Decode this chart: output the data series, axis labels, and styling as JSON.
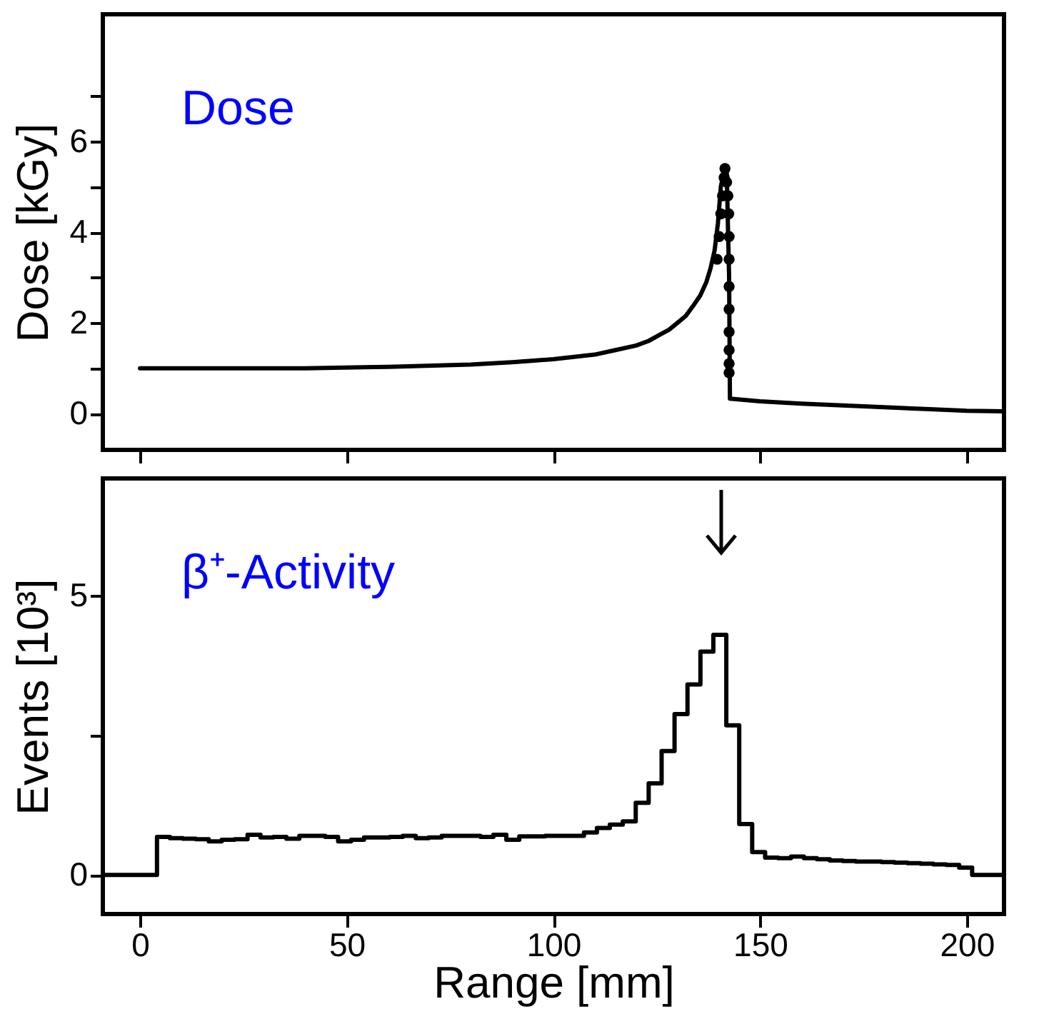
{
  "chart_data": [
    {
      "type": "line",
      "ylabel": "Dose [kGy]",
      "annotations": [
        "Dose"
      ],
      "xlim": [
        -9,
        209
      ],
      "xticks": [
        0,
        50,
        100,
        150,
        200
      ],
      "ylim": [
        -0.8,
        8.8
      ],
      "yticks": [
        0,
        {
          "value": 1,
          "label": null
        },
        2,
        {
          "value": 3,
          "label": null
        },
        4,
        {
          "value": 5,
          "label": null
        },
        6,
        {
          "value": 7,
          "label": null
        }
      ],
      "tick_labels": "y",
      "grid": false,
      "series": [
        {
          "type": "line",
          "color": "#000000",
          "x": [
            0,
            20,
            40,
            60,
            80,
            90,
            100,
            105,
            110,
            115,
            120,
            123,
            126,
            128,
            130,
            132,
            134,
            135.5,
            137,
            138,
            139,
            139.8,
            140.5,
            141.4,
            141.9,
            142.5,
            142.7,
            150,
            160,
            170,
            180,
            190,
            200,
            209
          ],
          "values": [
            1.0,
            1.0,
            1.0,
            1.03,
            1.08,
            1.13,
            1.2,
            1.25,
            1.3,
            1.4,
            1.5,
            1.6,
            1.75,
            1.85,
            2.0,
            2.15,
            2.4,
            2.6,
            2.9,
            3.2,
            3.6,
            4.2,
            5.0,
            5.4,
            5.4,
            3.0,
            0.33,
            0.27,
            0.22,
            0.18,
            0.14,
            0.1,
            0.06,
            0.05
          ]
        },
        {
          "type": "scatter",
          "color": "#000000",
          "marker": "circle",
          "x": [
            139.6,
            140.1,
            140.5,
            140.9,
            141.3,
            141.5,
            141.9,
            142.2,
            142.4,
            142.5,
            142.5,
            142.5,
            142.5,
            142.5,
            142.5,
            142.5,
            142.5
          ],
          "values": [
            3.4,
            3.9,
            4.4,
            4.8,
            5.2,
            5.4,
            5.1,
            4.8,
            4.4,
            3.9,
            3.4,
            2.8,
            2.3,
            1.8,
            1.4,
            1.1,
            0.9
          ]
        }
      ]
    },
    {
      "type": "histogram",
      "xlabel": "Range [mm]",
      "ylabel": "Events  [10³]",
      "annotations": [
        "β⁺-Activity"
      ],
      "xlim": [
        -9,
        209
      ],
      "xticks": [
        0,
        50,
        100,
        150,
        200
      ],
      "ylim": [
        -0.7,
        7.1
      ],
      "yticks": [
        0,
        {
          "value": 2.5,
          "label": null
        },
        5
      ],
      "grid": false,
      "color": "#000000",
      "bins": [
        -9,
        4.1,
        7.23,
        10.36,
        13.49,
        16.62,
        19.75,
        22.88,
        26.01,
        29.14,
        32.27,
        35.4,
        38.53,
        41.66,
        44.79,
        47.92,
        51.05,
        54.18,
        57.31,
        60.44,
        63.57,
        66.7,
        69.83,
        72.96,
        76.09,
        79.22,
        82.35,
        85.48,
        88.61,
        91.74,
        94.87,
        98,
        101.13,
        104.26,
        107.39,
        110.52,
        113.65,
        116.78,
        119.91,
        123.04,
        126.17,
        129.3,
        132.43,
        135.56,
        138.69,
        141.82,
        144.95,
        148.08,
        151.21,
        154.34,
        157.47,
        160.6,
        163.73,
        166.86,
        169.99,
        173.12,
        176.25,
        179.38,
        182.51,
        185.64,
        188.77,
        191.9,
        195.03,
        198.16,
        201.29,
        209
      ],
      "values": [
        0,
        0.68,
        0.66,
        0.65,
        0.64,
        0.6,
        0.63,
        0.64,
        0.72,
        0.67,
        0.68,
        0.65,
        0.7,
        0.7,
        0.68,
        0.6,
        0.63,
        0.67,
        0.67,
        0.68,
        0.7,
        0.66,
        0.67,
        0.7,
        0.7,
        0.7,
        0.68,
        0.72,
        0.63,
        0.69,
        0.69,
        0.7,
        0.7,
        0.7,
        0.76,
        0.84,
        0.9,
        0.96,
        1.29,
        1.64,
        2.22,
        2.88,
        3.41,
        4.0,
        4.3,
        2.68,
        0.91,
        0.41,
        0.31,
        0.3,
        0.33,
        0.3,
        0.28,
        0.26,
        0.25,
        0.24,
        0.24,
        0.23,
        0.22,
        0.21,
        0.2,
        0.19,
        0.18,
        0.13,
        0
      ]
    }
  ]
}
